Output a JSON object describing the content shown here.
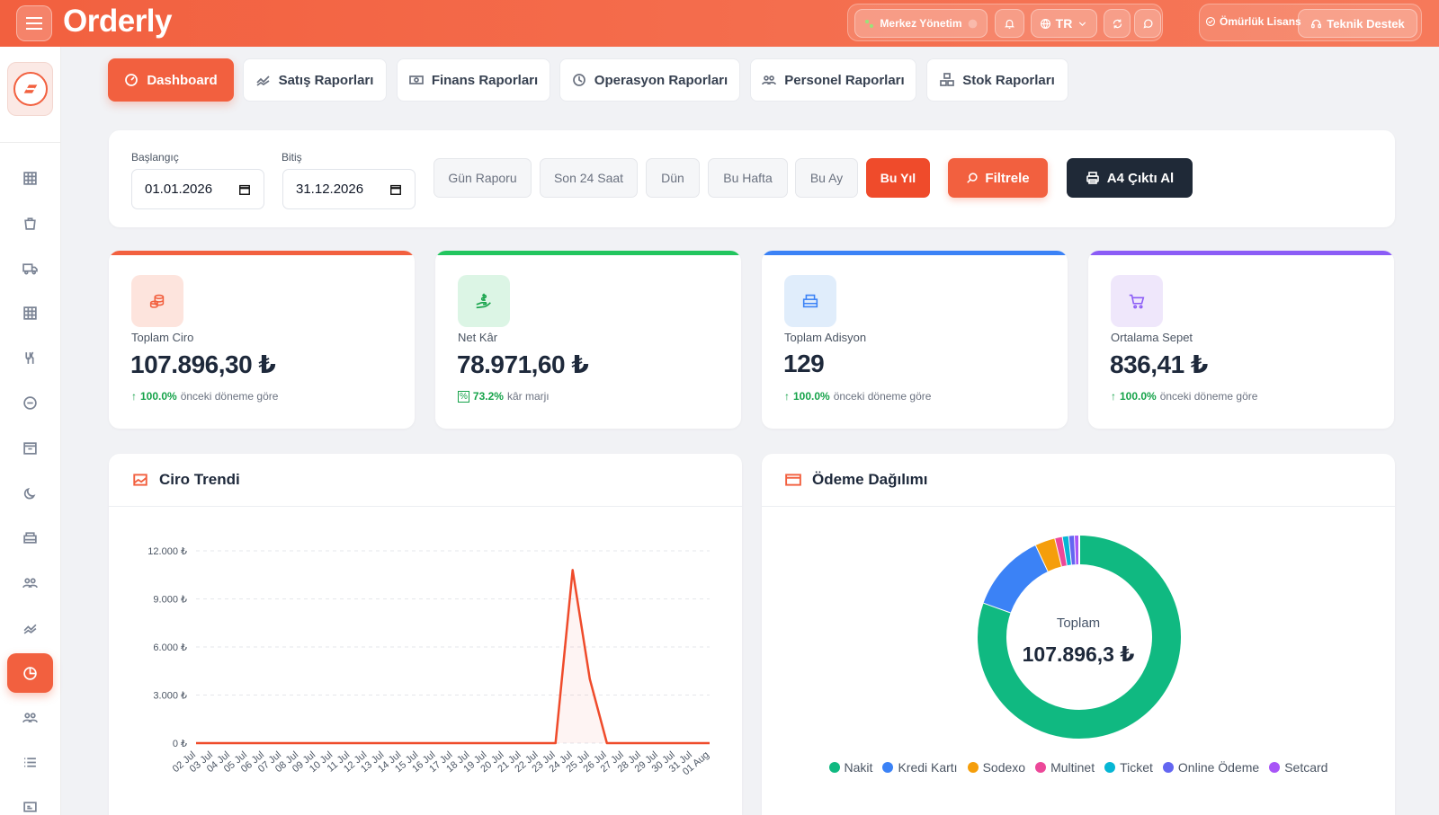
{
  "app": {
    "brand": "Orderly"
  },
  "topbar": {
    "branch": "Merkez Yönetim",
    "language": "TR",
    "license": "Ömürlük Lisans",
    "support": "Teknik Destek"
  },
  "tabs": [
    {
      "label": "Dashboard",
      "icon": "gauge-icon",
      "active": true
    },
    {
      "label": "Satış Raporları",
      "icon": "trend-icon"
    },
    {
      "label": "Finans Raporları",
      "icon": "cash-icon"
    },
    {
      "label": "Operasyon Raporları",
      "icon": "clock-icon"
    },
    {
      "label": "Personel Raporları",
      "icon": "people-icon"
    },
    {
      "label": "Stok Raporları",
      "icon": "boxes-icon"
    }
  ],
  "filters": {
    "start_label": "Başlangıç",
    "start_value": "01.01.2026",
    "end_label": "Bitiş",
    "end_value": "31.12.2026",
    "quick": [
      "Gün Raporu",
      "Son 24 Saat",
      "Dün",
      "Bu Hafta",
      "Bu Ay",
      "Bu Yıl"
    ],
    "quick_active": "Bu Yıl",
    "filter_label": "Filtrele",
    "print_label": "A4 Çıktı Al"
  },
  "stats": [
    {
      "label": "Toplam Ciro",
      "value": "107.896,30 ₺",
      "change": "100.0%",
      "note": "önceki döneme göre",
      "color": "#f2603f"
    },
    {
      "label": "Net Kâr",
      "value": "78.971,60 ₺",
      "change": "73.2%",
      "note": "kâr marjı",
      "color": "#22c55e"
    },
    {
      "label": "Toplam Adisyon",
      "value": "129",
      "change": "100.0%",
      "note": "önceki döneme göre",
      "color": "#3b82f6"
    },
    {
      "label": "Ortalama Sepet",
      "value": "836,41 ₺",
      "change": "100.0%",
      "note": "önceki döneme göre",
      "color": "#8b5cf6"
    }
  ],
  "trend": {
    "title": "Ciro Trendi"
  },
  "payments": {
    "title": "Ödeme Dağılımı",
    "center_label": "Toplam",
    "center_value": "107.896,3 ₺"
  },
  "chart_data": [
    {
      "type": "line",
      "title": "Ciro Trendi",
      "x": [
        "02 Jul",
        "03 Jul",
        "04 Jul",
        "05 Jul",
        "06 Jul",
        "07 Jul",
        "08 Jul",
        "09 Jul",
        "10 Jul",
        "11 Jul",
        "12 Jul",
        "13 Jul",
        "14 Jul",
        "15 Jul",
        "16 Jul",
        "17 Jul",
        "18 Jul",
        "19 Jul",
        "20 Jul",
        "21 Jul",
        "22 Jul",
        "23 Jul",
        "24 Jul",
        "25 Jul",
        "26 Jul",
        "27 Jul",
        "28 Jul",
        "29 Jul",
        "30 Jul",
        "31 Jul",
        "01 Aug"
      ],
      "values": [
        0,
        0,
        0,
        0,
        0,
        0,
        0,
        0,
        0,
        0,
        0,
        0,
        0,
        0,
        0,
        0,
        0,
        0,
        0,
        0,
        0,
        0,
        10800,
        4000,
        0,
        0,
        0,
        0,
        0,
        0,
        0
      ],
      "y_ticks": [
        "0 ₺",
        "3.000 ₺",
        "6.000 ₺",
        "9.000 ₺",
        "12.000 ₺"
      ],
      "ylim": [
        0,
        12000
      ],
      "color": "#ef4b2b",
      "grid": true
    },
    {
      "type": "pie",
      "title": "Ödeme Dağılımı",
      "categories": [
        "Nakit",
        "Kredi Kartı",
        "Sodexo",
        "Multinet",
        "Ticket",
        "Online Ödeme",
        "Setcard"
      ],
      "values": [
        80.5,
        12.5,
        3.2,
        1.2,
        1.0,
        0.9,
        0.7
      ],
      "colors": [
        "#10b981",
        "#3b82f6",
        "#f59e0b",
        "#ec4899",
        "#06b6d4",
        "#6366f1",
        "#a855f7"
      ],
      "legend": "bottom"
    }
  ]
}
